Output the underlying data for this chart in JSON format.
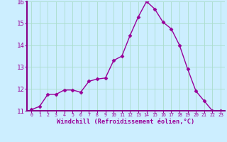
{
  "x": [
    0,
    1,
    2,
    3,
    4,
    5,
    6,
    7,
    8,
    9,
    10,
    11,
    12,
    13,
    14,
    15,
    16,
    17,
    18,
    19,
    20,
    21,
    22,
    23
  ],
  "y": [
    11.05,
    11.2,
    11.75,
    11.75,
    11.95,
    11.95,
    11.85,
    12.35,
    12.45,
    12.5,
    13.3,
    13.5,
    14.45,
    15.3,
    16.0,
    15.65,
    15.05,
    14.75,
    14.0,
    12.9,
    11.9,
    11.45,
    11.0,
    11.0
  ],
  "line_color": "#990099",
  "marker": "D",
  "markersize": 2.5,
  "linewidth": 1.0,
  "background_color": "#cceeff",
  "grid_color": "#aaddcc",
  "xlabel": "Windchill (Refroidissement éolien,°C)",
  "xlabel_color": "#990099",
  "tick_color": "#990099",
  "spine_color": "#880088",
  "ylim": [
    11,
    16
  ],
  "xlim": [
    -0.5,
    23.5
  ],
  "yticks": [
    11,
    12,
    13,
    14,
    15,
    16
  ],
  "xticks": [
    0,
    1,
    2,
    3,
    4,
    5,
    6,
    7,
    8,
    9,
    10,
    11,
    12,
    13,
    14,
    15,
    16,
    17,
    18,
    19,
    20,
    21,
    22,
    23
  ]
}
